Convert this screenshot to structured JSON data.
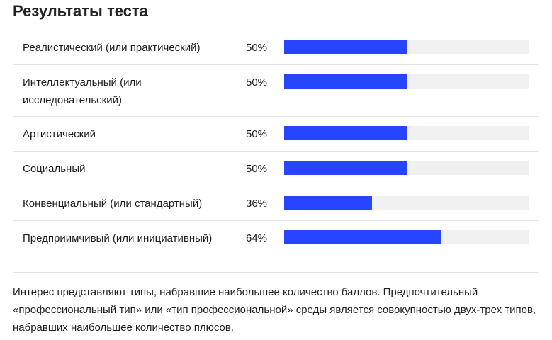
{
  "title": "Результаты теста",
  "colors": {
    "bar_fill": "#2744ff",
    "bar_track": "#f0f0f0",
    "divider": "#e3e3e3"
  },
  "results": [
    {
      "label": "Реалистический (или практический)",
      "percent_text": "50%",
      "percent": 50
    },
    {
      "label": "Интеллектуальный (или исследовательский)",
      "percent_text": "50%",
      "percent": 50
    },
    {
      "label": "Артистический",
      "percent_text": "50%",
      "percent": 50
    },
    {
      "label": "Социальный",
      "percent_text": "50%",
      "percent": 50
    },
    {
      "label": "Конвенциальный (или стандартный)",
      "percent_text": "36%",
      "percent": 36
    },
    {
      "label": "Предприимчивый (или инициативный)",
      "percent_text": "64%",
      "percent": 64
    }
  ],
  "note": "Интерес представляют типы, набравшие наибольшее количество баллов. Предпочтительный «профессиональный тип» или «тип профессиональной» среды является совокупностью двух-трех типов, набравших наибольшее количество плюсов."
}
